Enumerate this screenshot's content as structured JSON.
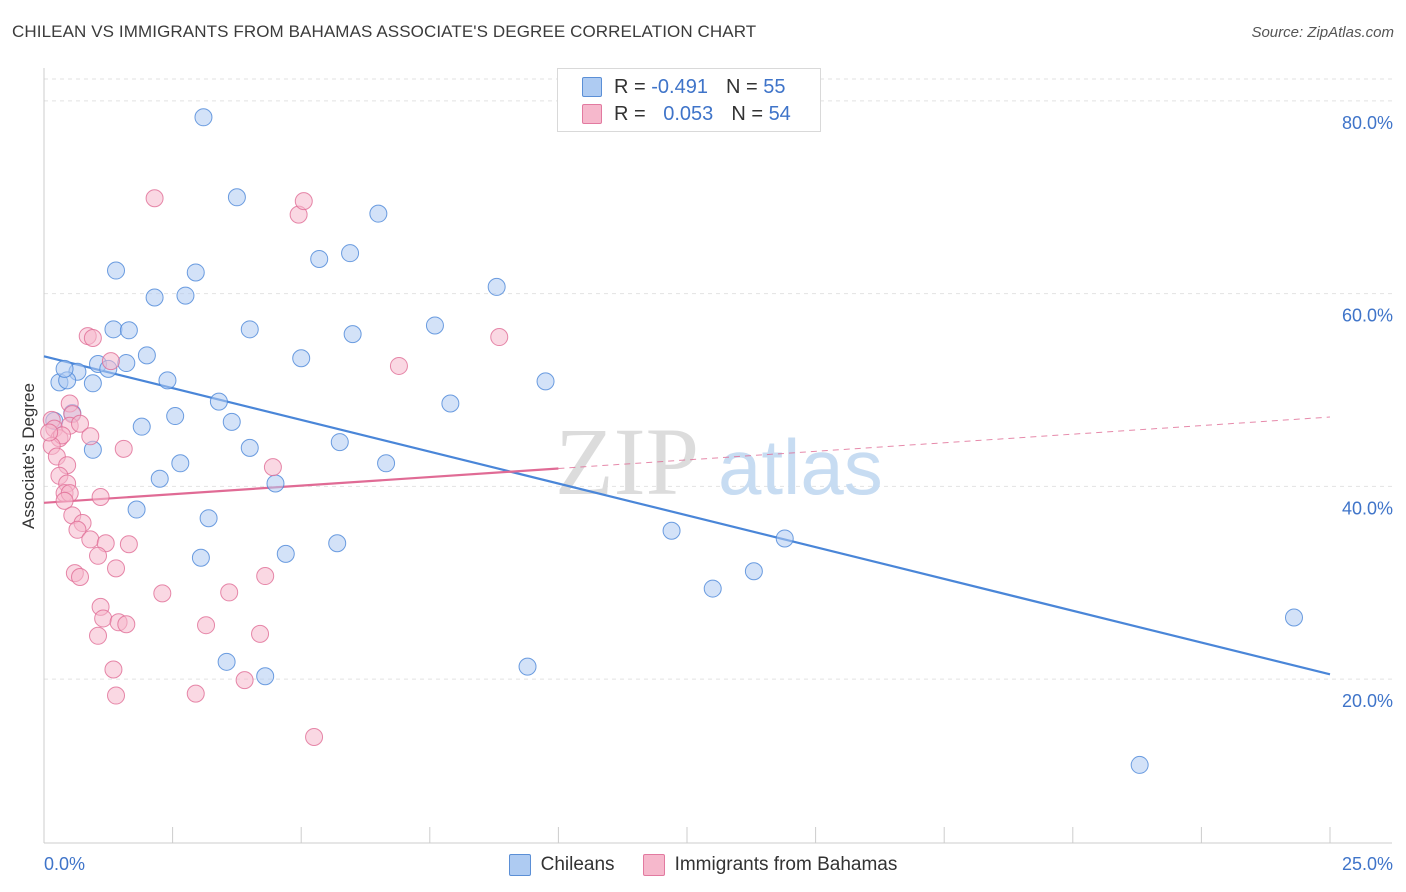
{
  "title": "CHILEAN VS IMMIGRANTS FROM BAHAMAS ASSOCIATE'S DEGREE CORRELATION CHART",
  "source": "Source: ZipAtlas.com",
  "watermark": {
    "zip": "ZIP",
    "atlas": "atlas"
  },
  "legend": {
    "rows": [
      {
        "r_label": "R = ",
        "r_value": "-0.491",
        "n_label": "N = ",
        "n_value": "55",
        "color": "#aecbf2"
      },
      {
        "r_label": "R = ",
        "r_value": "0.053",
        "n_label": "N = ",
        "n_value": "54",
        "color": "#f6b8cc"
      }
    ]
  },
  "bottom_legend": [
    {
      "label": "Chileans",
      "color": "#aecbf2"
    },
    {
      "label": "Immigrants from Bahamas",
      "color": "#f6b8cc"
    }
  ],
  "chart_data": {
    "type": "scatter",
    "xlabel": "",
    "ylabel": "Associate's Degree",
    "xlim": [
      0,
      25
    ],
    "ylim": [
      3,
      83
    ],
    "x_tick_labels": [
      "0.0%",
      "25.0%"
    ],
    "y_ticks": [
      {
        "value": 80,
        "label": "80.0%"
      },
      {
        "value": 60,
        "label": "60.0%"
      },
      {
        "value": 40,
        "label": "40.0%"
      },
      {
        "value": 20,
        "label": "20.0%"
      }
    ],
    "grid": true,
    "legend_position": "top-center",
    "series": [
      {
        "name": "Chileans",
        "color": "#4a86d8",
        "fill": "#aecbf2",
        "trend": {
          "x0": 0,
          "y0": 53.5,
          "x1": 25,
          "y1": 20.5,
          "solid_to": 25
        },
        "points": [
          [
            3.1,
            78.3
          ],
          [
            3.75,
            70.0
          ],
          [
            6.5,
            68.3
          ],
          [
            5.35,
            63.6
          ],
          [
            5.95,
            64.2
          ],
          [
            1.4,
            62.4
          ],
          [
            2.95,
            62.2
          ],
          [
            8.8,
            60.7
          ],
          [
            2.15,
            59.6
          ],
          [
            2.75,
            59.8
          ],
          [
            7.6,
            56.7
          ],
          [
            1.35,
            56.3
          ],
          [
            1.65,
            56.2
          ],
          [
            4.0,
            56.3
          ],
          [
            6.0,
            55.8
          ],
          [
            2.0,
            53.6
          ],
          [
            5.0,
            53.3
          ],
          [
            1.05,
            52.7
          ],
          [
            1.6,
            52.8
          ],
          [
            0.65,
            51.9
          ],
          [
            1.25,
            52.2
          ],
          [
            0.3,
            50.8
          ],
          [
            0.45,
            51.0
          ],
          [
            0.95,
            50.7
          ],
          [
            2.4,
            51.0
          ],
          [
            9.75,
            50.9
          ],
          [
            3.4,
            48.8
          ],
          [
            7.9,
            48.6
          ],
          [
            2.55,
            47.3
          ],
          [
            3.65,
            46.7
          ],
          [
            1.9,
            46.2
          ],
          [
            0.2,
            46.8
          ],
          [
            0.95,
            43.8
          ],
          [
            4.0,
            44.0
          ],
          [
            5.75,
            44.6
          ],
          [
            2.65,
            42.4
          ],
          [
            6.65,
            42.4
          ],
          [
            2.25,
            40.8
          ],
          [
            4.5,
            40.3
          ],
          [
            1.8,
            37.6
          ],
          [
            3.2,
            36.7
          ],
          [
            12.2,
            35.4
          ],
          [
            14.4,
            34.6
          ],
          [
            5.7,
            34.1
          ],
          [
            4.7,
            33.0
          ],
          [
            3.05,
            32.6
          ],
          [
            13.8,
            31.2
          ],
          [
            13.0,
            29.4
          ],
          [
            24.3,
            26.4
          ],
          [
            3.55,
            21.8
          ],
          [
            4.3,
            20.3
          ],
          [
            9.4,
            21.3
          ],
          [
            21.3,
            11.1
          ],
          [
            0.4,
            52.2
          ],
          [
            0.55,
            47.6
          ]
        ]
      },
      {
        "name": "Immigrants from Bahamas",
        "color": "#e06b95",
        "fill": "#f6b8cc",
        "trend": {
          "x0": 0,
          "y0": 38.3,
          "x1": 25,
          "y1": 47.2,
          "solid_to": 10.0
        },
        "points": [
          [
            2.15,
            69.9
          ],
          [
            4.95,
            68.2
          ],
          [
            5.05,
            69.6
          ],
          [
            0.85,
            55.6
          ],
          [
            0.95,
            55.4
          ],
          [
            8.85,
            55.5
          ],
          [
            1.3,
            53.0
          ],
          [
            6.9,
            52.5
          ],
          [
            0.5,
            48.6
          ],
          [
            0.55,
            47.5
          ],
          [
            0.15,
            46.9
          ],
          [
            0.2,
            46.0
          ],
          [
            0.3,
            45.0
          ],
          [
            0.5,
            46.3
          ],
          [
            0.7,
            46.5
          ],
          [
            0.35,
            45.3
          ],
          [
            0.9,
            45.2
          ],
          [
            0.15,
            44.2
          ],
          [
            0.25,
            43.1
          ],
          [
            0.45,
            42.2
          ],
          [
            1.55,
            43.9
          ],
          [
            4.45,
            42.0
          ],
          [
            0.3,
            41.1
          ],
          [
            0.45,
            40.3
          ],
          [
            0.4,
            39.3
          ],
          [
            0.5,
            39.3
          ],
          [
            0.4,
            38.5
          ],
          [
            1.1,
            38.9
          ],
          [
            0.55,
            37.0
          ],
          [
            0.75,
            36.2
          ],
          [
            0.65,
            35.5
          ],
          [
            0.9,
            34.5
          ],
          [
            1.2,
            34.1
          ],
          [
            1.65,
            34.0
          ],
          [
            1.05,
            32.8
          ],
          [
            1.4,
            31.5
          ],
          [
            0.6,
            31.0
          ],
          [
            0.7,
            30.6
          ],
          [
            4.3,
            30.7
          ],
          [
            2.3,
            28.9
          ],
          [
            3.6,
            29.0
          ],
          [
            1.1,
            27.5
          ],
          [
            1.15,
            26.3
          ],
          [
            1.45,
            25.9
          ],
          [
            1.6,
            25.7
          ],
          [
            3.15,
            25.6
          ],
          [
            1.05,
            24.5
          ],
          [
            4.2,
            24.7
          ],
          [
            1.35,
            21.0
          ],
          [
            3.9,
            19.9
          ],
          [
            1.4,
            18.3
          ],
          [
            2.95,
            18.5
          ],
          [
            5.25,
            14.0
          ],
          [
            0.1,
            45.6
          ]
        ]
      }
    ]
  }
}
